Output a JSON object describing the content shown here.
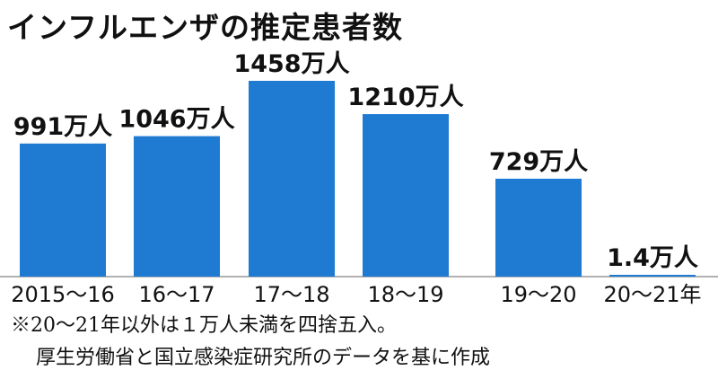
{
  "chart_data": {
    "type": "bar",
    "title": "インフルエンザの推定患者数",
    "categories": [
      "2015〜16",
      "16〜17",
      "17〜18",
      "18〜19",
      "19〜20",
      "20〜21年"
    ],
    "values": [
      991,
      1046,
      1458,
      1210,
      729,
      1.4
    ],
    "value_labels": [
      "991万人",
      "1046万人",
      "1458万人",
      "1210万人",
      "729万人",
      "1.4万人"
    ],
    "unit": "万人",
    "bar_color": "#1f7ad2",
    "ylim": [
      0,
      1458
    ],
    "grid": false,
    "legend": "none"
  },
  "notes": {
    "line1": "※20〜21年以外は１万人未満を四捨五入。",
    "line2": "厚生労働省と国立感染症研究所のデータを基に作成"
  }
}
